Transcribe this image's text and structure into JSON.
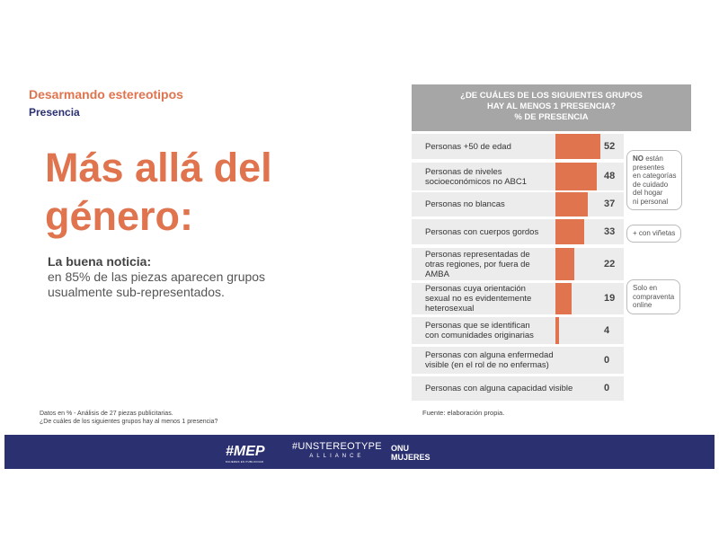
{
  "slide": {
    "kicker": "Desarmando estereotipos",
    "subkicker": "Presencia",
    "headline": [
      "Más allá del",
      "género:"
    ],
    "news_lead": "La buena noticia:",
    "news_body": [
      "en 85% de las piezas aparecen grupos",
      "usualmente sub-representados."
    ],
    "footnote": [
      "Datos en % - Análisis de 27 piezas publicitarias.",
      "¿De cuáles de los siguientes grupos hay al menos 1 presencia?"
    ],
    "source": "Fuente: elaboración propia."
  },
  "chart_data": {
    "type": "bar",
    "orientation": "horizontal",
    "title": [
      "¿DE CUÁLES DE LOS SIGUIENTES GRUPOS",
      "HAY AL MENOS 1 PRESENCIA?",
      "% DE PRESENCIA"
    ],
    "categories": [
      [
        "Personas +50 de edad"
      ],
      [
        "Personas de niveles",
        "socioeconómicos no ABC1"
      ],
      [
        "Personas no blancas"
      ],
      [
        "Personas con cuerpos gordos"
      ],
      [
        "Personas representadas de",
        "otras regiones, por fuera de",
        "AMBA"
      ],
      [
        "Personas cuya orientación",
        "sexual no es evidentemente",
        "heterosexual"
      ],
      [
        "Personas que se identifican",
        "con comunidades originarias"
      ],
      [
        "Personas con alguna enfermedad",
        "visible (en el rol de no enfermas)"
      ],
      [
        "Personas con alguna capacidad visible"
      ]
    ],
    "values": [
      52,
      48,
      37,
      33,
      22,
      19,
      4,
      0,
      0
    ],
    "bar_color": "#e0744f",
    "annotations": [
      {
        "row": 1,
        "bold": "NO",
        "lines": [
          " están",
          "presentes",
          "en categorías",
          "de cuidado",
          "del hogar",
          "ni personal"
        ]
      },
      {
        "row": 3,
        "bold": "",
        "lines": [
          "+ con viñetas"
        ]
      },
      {
        "row": 5,
        "bold": "",
        "lines": [
          "Solo en",
          "compraventa",
          "online"
        ]
      }
    ]
  },
  "footer": {
    "logo_mep": "#MEP",
    "logo_mep_sub": "MUJERES EN PUBLICIDAD",
    "logo_un": "#UNSTEREOTYPE",
    "logo_un_sub": "ALLIANCE",
    "logo_onu": [
      "ONU",
      "MUJERES"
    ]
  }
}
